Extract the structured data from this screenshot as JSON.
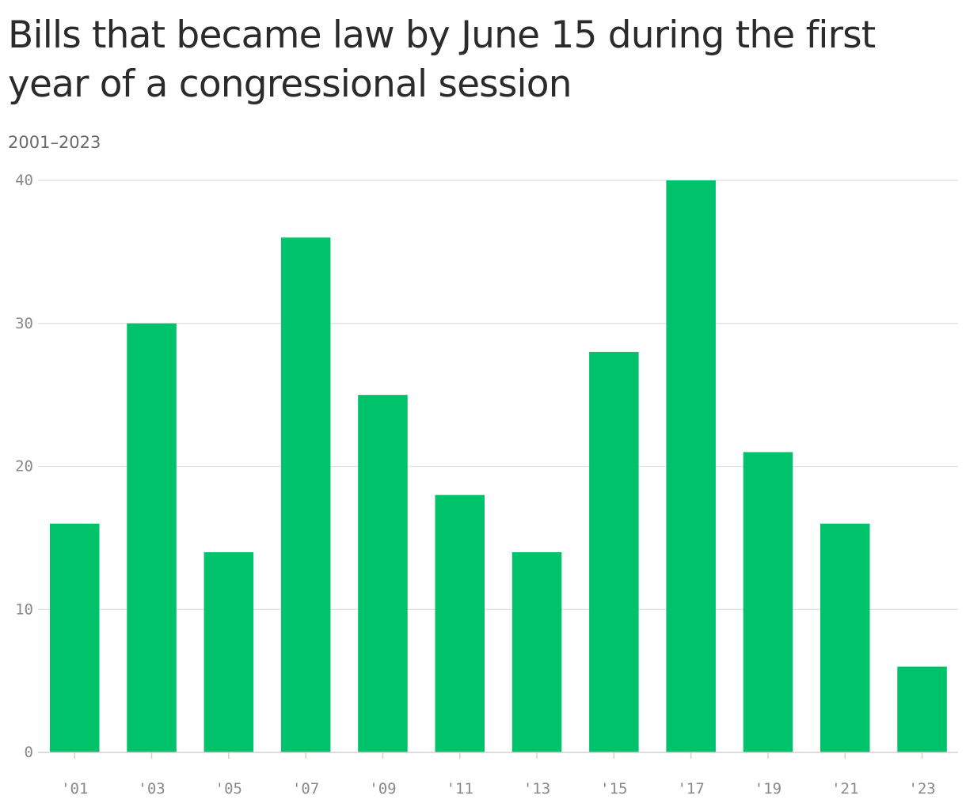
{
  "chart_data": {
    "type": "bar",
    "title": "Bills that became law by June 15 during the first year of a congressional session",
    "subtitle": "2001–2023",
    "categories": [
      "'01",
      "'03",
      "'05",
      "'07",
      "'09",
      "'11",
      "'13",
      "'15",
      "'17",
      "'19",
      "'21",
      "'23"
    ],
    "values": [
      16,
      30,
      14,
      36,
      25,
      18,
      14,
      28,
      40,
      21,
      16,
      6
    ],
    "xlabel": "",
    "ylabel": "",
    "ylim": [
      0,
      40
    ],
    "yticks": [
      0,
      10,
      20,
      30,
      40
    ],
    "ytick_labels": [
      "0",
      "10",
      "20",
      "30",
      "40"
    ],
    "grid": true,
    "bar_color": "#00c26a",
    "grid_color": "#e3e3e3",
    "axis_color": "#d0d0d0"
  }
}
